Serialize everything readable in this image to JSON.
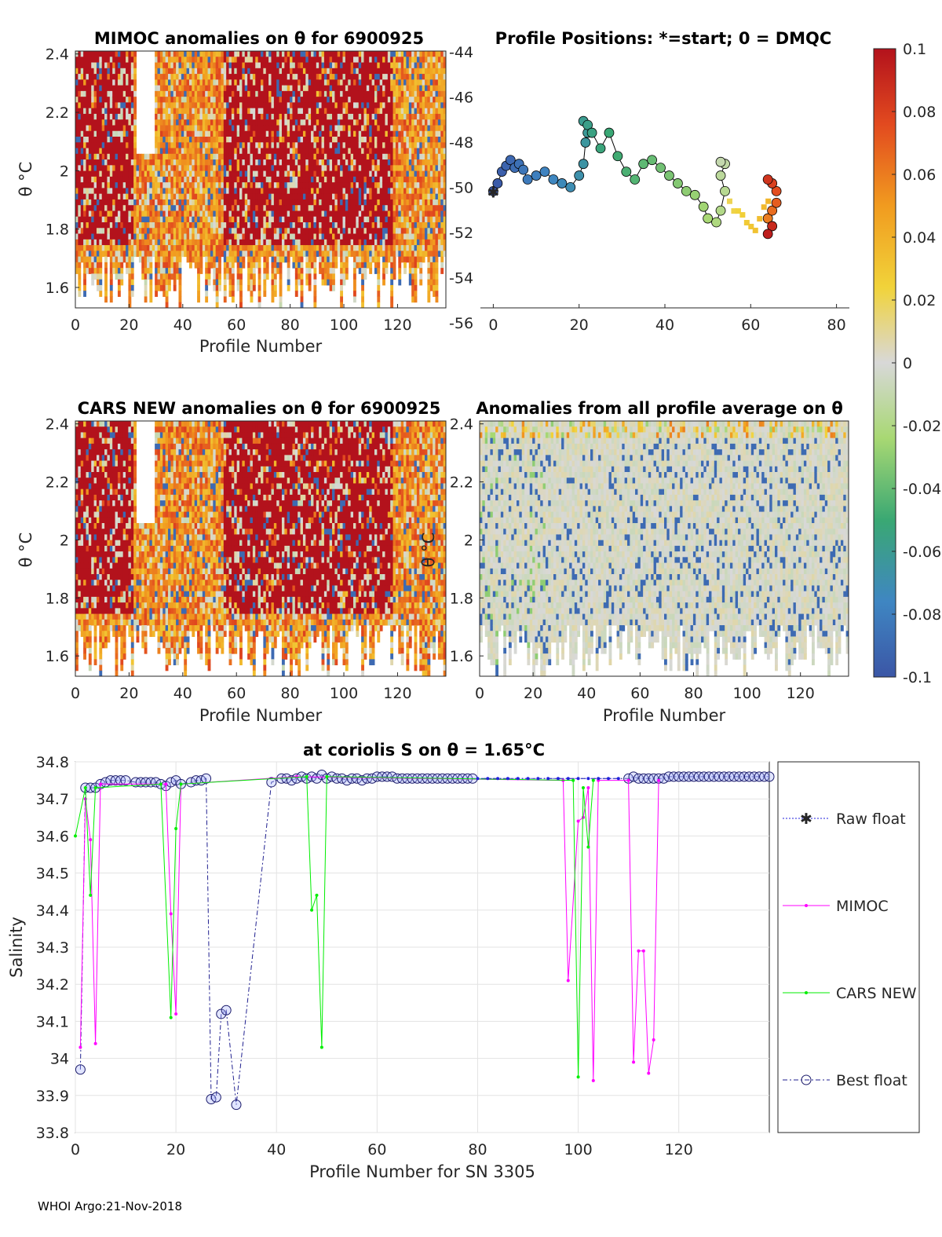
{
  "footer": "WHOI Argo:21-Nov-2018",
  "colorbar": {
    "ticks": [
      "0.1",
      "0.08",
      "0.06",
      "0.04",
      "0.02",
      "0",
      "-0.02",
      "-0.04",
      "-0.06",
      "-0.08",
      "-0.1"
    ],
    "range": [
      -0.1,
      0.1
    ]
  },
  "chart_data": [
    {
      "type": "heatmap",
      "title": "MIMOC anomalies on θ  for 6900925",
      "xlabel": "Profile Number",
      "ylabel": "θ °C",
      "xlim": [
        0,
        138
      ],
      "ylim": [
        1.53,
        2.41
      ],
      "xticks": [
        "0",
        "20",
        "40",
        "60",
        "80",
        "100",
        "120"
      ],
      "yticks": [
        "2.4",
        "2.2",
        "2",
        "1.8",
        "1.6"
      ],
      "right_axis_ticks": [
        "-44",
        "-46",
        "-48",
        "-50",
        "-52",
        "-54",
        "-56"
      ],
      "colorscale_range": [
        -0.1,
        0.1
      ],
      "seed": 11,
      "dominant": "positive"
    },
    {
      "type": "scatter",
      "title": "Profile Positions: *=start; 0 = DMQC",
      "xlim": [
        -3,
        83
      ],
      "ylim": [
        -57,
        -43.8
      ],
      "xticks": [
        "0",
        "20",
        "40",
        "60",
        "80"
      ],
      "points": [
        [
          0,
          -51
        ],
        [
          1,
          -50.6
        ],
        [
          2,
          -50
        ],
        [
          3,
          -49.7
        ],
        [
          4,
          -49.4
        ],
        [
          5,
          -49.8
        ],
        [
          6,
          -49.6
        ],
        [
          7,
          -49.9
        ],
        [
          8,
          -50.4
        ],
        [
          10,
          -50.2
        ],
        [
          12,
          -50
        ],
        [
          14,
          -50.4
        ],
        [
          16,
          -50.6
        ],
        [
          18,
          -50.8
        ],
        [
          20,
          -50.2
        ],
        [
          21,
          -49.6
        ],
        [
          21.5,
          -48.5
        ],
        [
          22,
          -48
        ],
        [
          21,
          -47.4
        ],
        [
          22,
          -47.6
        ],
        [
          23,
          -48
        ],
        [
          25,
          -48.8
        ],
        [
          27,
          -48
        ],
        [
          29,
          -49.2
        ],
        [
          31,
          -50
        ],
        [
          33,
          -50.4
        ],
        [
          35,
          -49.6
        ],
        [
          37,
          -49.4
        ],
        [
          39,
          -49.8
        ],
        [
          41,
          -50.2
        ],
        [
          43,
          -50.6
        ],
        [
          45,
          -51
        ],
        [
          47,
          -51.2
        ],
        [
          49,
          -51.8
        ],
        [
          50,
          -52.4
        ],
        [
          52,
          -52.6
        ],
        [
          53,
          -52
        ],
        [
          54,
          -51
        ],
        [
          53,
          -50.2
        ],
        [
          54,
          -49.6
        ],
        [
          53,
          -49.5
        ]
      ],
      "tail": [
        [
          55,
          -51.5
        ],
        [
          56,
          -52
        ],
        [
          57,
          -52
        ],
        [
          58,
          -52.2
        ],
        [
          59,
          -52.6
        ],
        [
          60,
          -52.8
        ],
        [
          61,
          -53
        ],
        [
          62,
          -52.4
        ],
        [
          63,
          -51.8
        ],
        [
          64,
          -51.5
        ]
      ],
      "red_points": [
        [
          64,
          -52.4
        ],
        [
          65,
          -52
        ],
        [
          66,
          -51.6
        ],
        [
          66,
          -51
        ],
        [
          65,
          -50.6
        ],
        [
          64,
          -50.4
        ],
        [
          65,
          -52.8
        ],
        [
          64,
          -53.2
        ]
      ]
    },
    {
      "type": "heatmap",
      "title": "CARS NEW anomalies on θ for 6900925",
      "xlabel": "Profile Number",
      "ylabel": "θ °C",
      "xlim": [
        0,
        138
      ],
      "ylim": [
        1.53,
        2.41
      ],
      "xticks": [
        "0",
        "20",
        "40",
        "60",
        "80",
        "100",
        "120"
      ],
      "yticks": [
        "2.4",
        "2.2",
        "2",
        "1.8",
        "1.6"
      ],
      "colorscale_range": [
        -0.1,
        0.1
      ],
      "seed": 23,
      "dominant": "positive"
    },
    {
      "type": "heatmap",
      "title": "Anomalies from all profile average on θ",
      "xlabel": "Profile Number",
      "ylabel": "θ °C",
      "xlim": [
        0,
        138
      ],
      "ylim": [
        1.53,
        2.41
      ],
      "xticks": [
        "0",
        "20",
        "40",
        "60",
        "80",
        "100",
        "120"
      ],
      "yticks": [
        "2.4",
        "2.2",
        "2",
        "1.8",
        "1.6"
      ],
      "colorscale_range": [
        -0.1,
        0.1
      ],
      "seed": 37,
      "dominant": "neutral"
    },
    {
      "type": "line",
      "title": "at coriolis S on θ = 1.65°C",
      "xlabel": "Profile Number for SN 3305",
      "ylabel": "Salinity",
      "xlim": [
        0,
        138
      ],
      "ylim": [
        33.8,
        34.8
      ],
      "xticks": [
        "0",
        "20",
        "40",
        "60",
        "80",
        "100",
        "120"
      ],
      "yticks": [
        "34.8",
        "34.7",
        "34.6",
        "34.5",
        "34.4",
        "34.3",
        "34.2",
        "34.1",
        "34",
        "33.9",
        "33.8"
      ],
      "grid": true,
      "legend": [
        "Raw float",
        "MIMOC",
        "CARS NEW",
        "Best float"
      ],
      "series": [
        {
          "name": "Best float",
          "color": "#1f1f8f",
          "points": [
            [
              1,
              33.97
            ],
            [
              2,
              34.73
            ],
            [
              3,
              34.73
            ],
            [
              4,
              34.73
            ],
            [
              5,
              34.74
            ],
            [
              6,
              34.745
            ],
            [
              7,
              34.75
            ],
            [
              8,
              34.75
            ],
            [
              9,
              34.75
            ],
            [
              10,
              34.75
            ],
            [
              12,
              34.745
            ],
            [
              13,
              34.745
            ],
            [
              14,
              34.745
            ],
            [
              15,
              34.745
            ],
            [
              16,
              34.745
            ],
            [
              17,
              34.74
            ],
            [
              18,
              34.735
            ],
            [
              19,
              34.745
            ],
            [
              20,
              34.75
            ],
            [
              21,
              34.74
            ],
            [
              23,
              34.745
            ],
            [
              24,
              34.75
            ],
            [
              25,
              34.75
            ],
            [
              26,
              34.755
            ],
            [
              27,
              33.89
            ],
            [
              28,
              33.895
            ],
            [
              29,
              34.12
            ],
            [
              30,
              34.13
            ],
            [
              32,
              33.875
            ],
            [
              39,
              34.745
            ],
            [
              41,
              34.755
            ],
            [
              42,
              34.755
            ],
            [
              43,
              34.75
            ],
            [
              44,
              34.755
            ],
            [
              45,
              34.76
            ],
            [
              46,
              34.755
            ],
            [
              47,
              34.76
            ],
            [
              48,
              34.755
            ],
            [
              49,
              34.765
            ],
            [
              50,
              34.755
            ],
            [
              51,
              34.76
            ],
            [
              52,
              34.755
            ],
            [
              53,
              34.755
            ],
            [
              54,
              34.75
            ],
            [
              55,
              34.755
            ],
            [
              56,
              34.755
            ],
            [
              57,
              34.75
            ],
            [
              58,
              34.755
            ],
            [
              59,
              34.755
            ],
            [
              60,
              34.76
            ],
            [
              61,
              34.76
            ],
            [
              62,
              34.76
            ],
            [
              63,
              34.76
            ],
            [
              64,
              34.755
            ],
            [
              65,
              34.755
            ],
            [
              66,
              34.755
            ],
            [
              67,
              34.755
            ],
            [
              68,
              34.755
            ],
            [
              69,
              34.755
            ],
            [
              70,
              34.755
            ],
            [
              71,
              34.755
            ],
            [
              72,
              34.755
            ],
            [
              73,
              34.755
            ],
            [
              74,
              34.755
            ],
            [
              75,
              34.755
            ],
            [
              76,
              34.755
            ],
            [
              77,
              34.755
            ],
            [
              78,
              34.755
            ],
            [
              79,
              34.755
            ],
            [
              110,
              34.755
            ],
            [
              111,
              34.76
            ],
            [
              112,
              34.755
            ],
            [
              113,
              34.755
            ],
            [
              114,
              34.755
            ],
            [
              115,
              34.755
            ],
            [
              116,
              34.755
            ],
            [
              117,
              34.755
            ],
            [
              118,
              34.76
            ],
            [
              119,
              34.76
            ],
            [
              120,
              34.76
            ],
            [
              121,
              34.76
            ],
            [
              122,
              34.76
            ],
            [
              123,
              34.76
            ],
            [
              124,
              34.76
            ],
            [
              125,
              34.76
            ],
            [
              126,
              34.76
            ],
            [
              127,
              34.76
            ],
            [
              128,
              34.76
            ],
            [
              129,
              34.76
            ],
            [
              130,
              34.76
            ],
            [
              131,
              34.76
            ],
            [
              132,
              34.76
            ],
            [
              133,
              34.76
            ],
            [
              134,
              34.76
            ],
            [
              135,
              34.76
            ],
            [
              136,
              34.76
            ],
            [
              137,
              34.76
            ],
            [
              138,
              34.76
            ]
          ]
        },
        {
          "name": "MIMOC",
          "color": "#ff00ff",
          "points": [
            [
              1,
              34.03
            ],
            [
              2,
              34.7
            ],
            [
              3,
              34.59
            ],
            [
              4,
              34.04
            ],
            [
              5,
              34.74
            ],
            [
              18,
              34.74
            ],
            [
              19,
              34.39
            ],
            [
              20,
              34.12
            ],
            [
              21,
              34.74
            ],
            [
              44,
              34.76
            ],
            [
              97,
              34.75
            ],
            [
              98,
              34.21
            ],
            [
              100,
              34.64
            ],
            [
              101,
              34.65
            ],
            [
              102,
              34.73
            ],
            [
              103,
              33.94
            ],
            [
              104,
              34.75
            ],
            [
              110,
              34.75
            ],
            [
              111,
              33.99
            ],
            [
              112,
              34.29
            ],
            [
              113,
              34.29
            ],
            [
              114,
              33.96
            ],
            [
              115,
              34.05
            ],
            [
              116,
              34.75
            ]
          ]
        },
        {
          "name": "CARS NEW",
          "color": "#00ee00",
          "points": [
            [
              0,
              34.6
            ],
            [
              2,
              34.73
            ],
            [
              3,
              34.44
            ],
            [
              4,
              34.73
            ],
            [
              17,
              34.74
            ],
            [
              19,
              34.11
            ],
            [
              20,
              34.62
            ],
            [
              21,
              34.74
            ],
            [
              46,
              34.76
            ],
            [
              47,
              34.4
            ],
            [
              48,
              34.44
            ],
            [
              49,
              34.03
            ],
            [
              50,
              34.76
            ],
            [
              99,
              34.75
            ],
            [
              100,
              33.95
            ],
            [
              101,
              34.73
            ],
            [
              102,
              34.57
            ],
            [
              103,
              34.75
            ]
          ]
        },
        {
          "name": "Raw float",
          "color": "#2222dd",
          "points": [
            [
              80,
              34.755
            ],
            [
              82,
              34.755
            ],
            [
              84,
              34.755
            ],
            [
              86,
              34.755
            ],
            [
              88,
              34.755
            ],
            [
              90,
              34.755
            ],
            [
              92,
              34.755
            ],
            [
              94,
              34.755
            ],
            [
              96,
              34.755
            ],
            [
              98,
              34.755
            ],
            [
              100,
              34.755
            ],
            [
              102,
              34.755
            ],
            [
              104,
              34.755
            ],
            [
              106,
              34.755
            ],
            [
              108,
              34.755
            ]
          ]
        }
      ]
    }
  ]
}
